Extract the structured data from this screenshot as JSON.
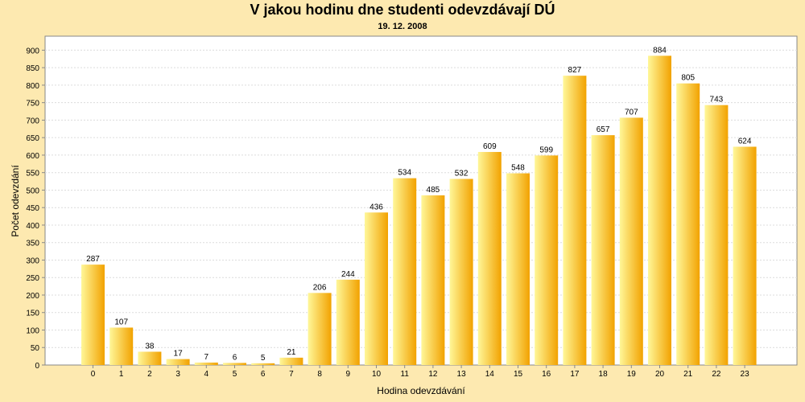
{
  "chart_data": {
    "type": "bar",
    "title": "V jakou hodinu dne studenti odevzdávají DÚ",
    "subtitle": "19. 12. 2008",
    "xlabel": "Hodina odevzdávání",
    "ylabel": "Počet odevzdání",
    "ylim": [
      0,
      940
    ],
    "yticks": [
      0,
      50,
      100,
      150,
      200,
      250,
      300,
      350,
      400,
      450,
      500,
      550,
      600,
      650,
      700,
      750,
      800,
      850,
      900
    ],
    "grid": true,
    "categories": [
      "0",
      "1",
      "2",
      "3",
      "4",
      "5",
      "6",
      "7",
      "8",
      "9",
      "10",
      "11",
      "12",
      "13",
      "14",
      "15",
      "16",
      "17",
      "18",
      "19",
      "20",
      "21",
      "22",
      "23"
    ],
    "values": [
      287,
      107,
      38,
      17,
      7,
      6,
      5,
      21,
      206,
      244,
      436,
      534,
      485,
      532,
      609,
      548,
      599,
      827,
      657,
      707,
      884,
      805,
      743,
      624
    ],
    "colors": {
      "bar_light": "#fff799",
      "bar_dark": "#f2a200",
      "plot_bg": "#ffffff",
      "page_bg": "#fde9b0",
      "grid": "#dcdcdc"
    }
  }
}
